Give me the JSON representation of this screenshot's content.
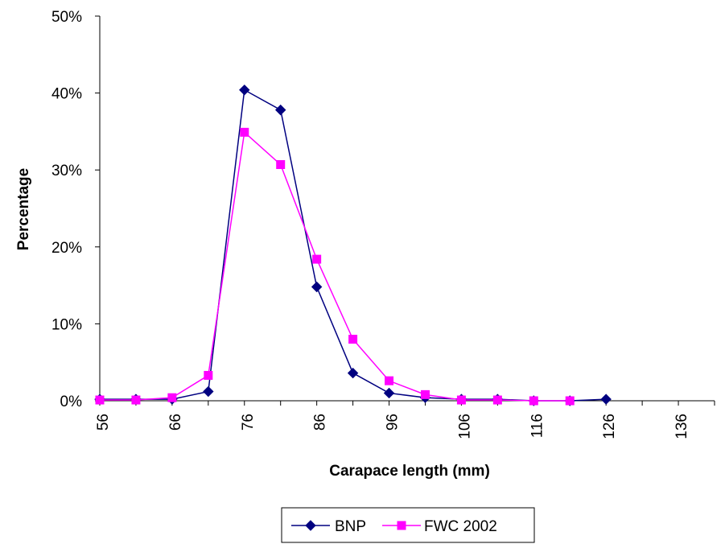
{
  "chart_data": {
    "type": "line",
    "title": "",
    "xlabel": "Carapace length (mm)",
    "ylabel": "Percentage",
    "x_ticks": [
      "56",
      "66",
      "76",
      "86",
      "96",
      "106",
      "116",
      "126",
      "136"
    ],
    "y_ticks": [
      "0%",
      "10%",
      "20%",
      "30%",
      "40%",
      "50%"
    ],
    "xlim": [
      56,
      141
    ],
    "ylim": [
      0,
      50
    ],
    "grid": false,
    "legend_position": "bottom",
    "series": [
      {
        "name": "BNP",
        "color": "#000080",
        "marker": "diamond",
        "points": [
          [
            56,
            0.2
          ],
          [
            61,
            0.2
          ],
          [
            66,
            0.2
          ],
          [
            71,
            1.2
          ],
          [
            76,
            40.4
          ],
          [
            81,
            37.8
          ],
          [
            86,
            14.8
          ],
          [
            91,
            3.6
          ],
          [
            96,
            1.0
          ],
          [
            101,
            0.4
          ],
          [
            106,
            0.2
          ],
          [
            111,
            0.2
          ],
          [
            116,
            0
          ],
          [
            121,
            0
          ],
          [
            126,
            0.2
          ]
        ]
      },
      {
        "name": "FWC 2002",
        "color": "#ff00ff",
        "marker": "square",
        "points": [
          [
            56,
            0.1
          ],
          [
            61,
            0.1
          ],
          [
            66,
            0.4
          ],
          [
            71,
            3.3
          ],
          [
            76,
            34.9
          ],
          [
            81,
            30.7
          ],
          [
            86,
            18.4
          ],
          [
            91,
            8.0
          ],
          [
            96,
            2.6
          ],
          [
            101,
            0.8
          ],
          [
            106,
            0.1
          ],
          [
            111,
            0.1
          ],
          [
            116,
            0
          ],
          [
            121,
            0
          ]
        ]
      }
    ]
  }
}
